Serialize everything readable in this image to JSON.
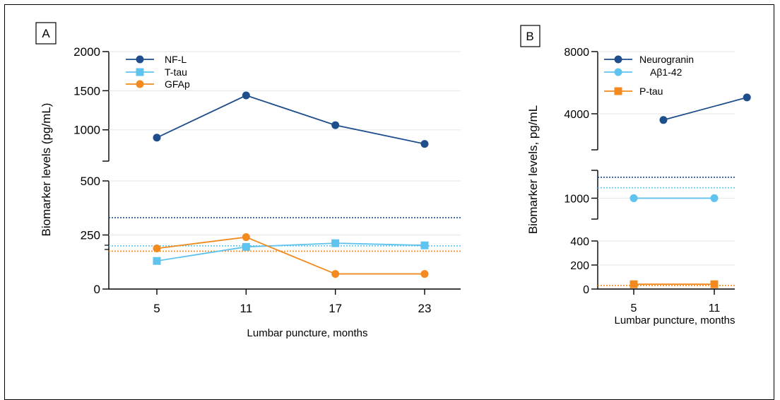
{
  "colors": {
    "navy": "#1f4e8c",
    "light_blue": "#5ec3ee",
    "orange": "#f28a1e",
    "grid": "#e6e6e6"
  },
  "chart_data": [
    {
      "panel": "A",
      "type": "line",
      "xlabel": "Lumbar puncture, months",
      "ylabel": "Biomarker levels (pg/mL)",
      "x": [
        5,
        11,
        17,
        23
      ],
      "x_ticks": [
        "5",
        "11",
        "17",
        "23"
      ],
      "y_axis_break": true,
      "upper_segment": {
        "ylim": [
          600,
          2000
        ],
        "ticks": [
          "1000",
          "1500",
          "2000"
        ]
      },
      "lower_segment": {
        "ylim": [
          0,
          500
        ],
        "ticks": [
          "0",
          "250",
          "500"
        ]
      },
      "grid": "horizontal",
      "legend_position": "top-left",
      "series": [
        {
          "name": "NF-L",
          "marker": "circle",
          "color": "#1f4e8c",
          "values": [
            900,
            1440,
            1060,
            820
          ]
        },
        {
          "name": "T-tau",
          "marker": "square",
          "color": "#5ec3ee",
          "values": [
            130,
            195,
            212,
            202
          ]
        },
        {
          "name": "GFAp",
          "marker": "circle",
          "color": "#f28a1e",
          "values": [
            188,
            240,
            70,
            70
          ]
        }
      ],
      "reference_lines": [
        {
          "color": "#1f4e8c",
          "value": 330
        },
        {
          "color": "#5ec3ee",
          "value": 200
        },
        {
          "color": "#f28a1e",
          "value": 175
        }
      ]
    },
    {
      "panel": "B",
      "type": "line",
      "xlabel": "Lumbar puncture, months",
      "ylabel": "Biomarker levels, pg/mL",
      "x": [
        5,
        11
      ],
      "x_ticks": [
        "5",
        "11"
      ],
      "y_axis_break": true,
      "upper_segment": {
        "ylim": [
          1500,
          8000
        ],
        "ticks": [
          "4000",
          "8000"
        ]
      },
      "middle_segment": {
        "ylim": [
          700,
          1400
        ],
        "ticks": [
          "1000"
        ]
      },
      "lower_segment": {
        "ylim": [
          0,
          400
        ],
        "ticks": [
          "0",
          "200",
          "400"
        ]
      },
      "grid": "horizontal",
      "legend_position": "top-left",
      "series": [
        {
          "name": "Neurogranin",
          "marker": "circle",
          "color": "#1f4e8c",
          "segment": "upper",
          "x_offset": 0.5,
          "values": [
            3600,
            5050
          ]
        },
        {
          "name": "Aβ1-42",
          "marker": "circle",
          "color": "#5ec3ee",
          "segment": "middle",
          "x_offset": 0,
          "values": [
            1000,
            1000
          ]
        },
        {
          "name": "P-tau",
          "marker": "square",
          "color": "#f28a1e",
          "segment": "lower",
          "x_offset": 0,
          "values": [
            40,
            40
          ]
        }
      ],
      "reference_lines": [
        {
          "color": "#1f4e8c",
          "segment": "middle",
          "value": 1300
        },
        {
          "color": "#5ec3ee",
          "segment": "middle",
          "value": 1150
        },
        {
          "color": "#f28a1e",
          "segment": "lower",
          "value": 30
        }
      ]
    }
  ]
}
